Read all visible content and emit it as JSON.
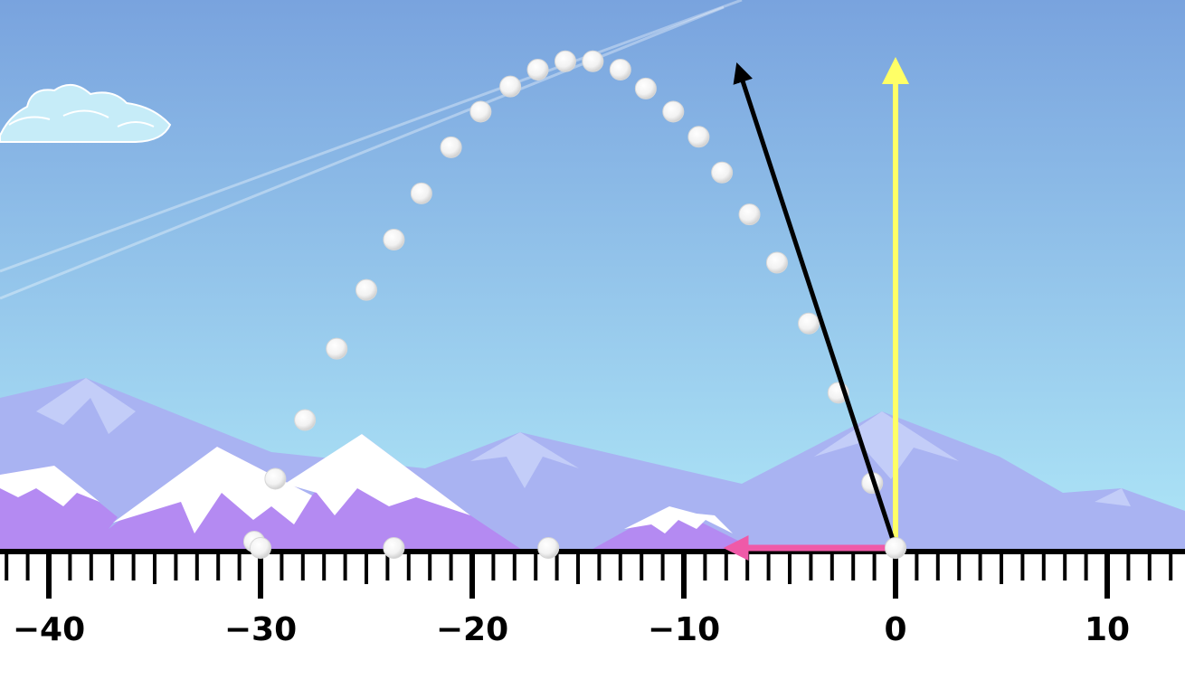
{
  "scene": {
    "type": "projectile-motion-simulation",
    "colors": {
      "sky_top": "#79a3de",
      "sky_bottom": "#aee6f7",
      "far_mountains": "#a9b3f2",
      "near_mountains": "#b48af2",
      "snow": "#ffffff",
      "ground_line": "#000000",
      "velocity_vector": "#000000",
      "vertical_component": "#ffff66",
      "horizontal_component": "#ef5aa8",
      "projectile": "#ffffff"
    }
  },
  "number_line": {
    "min": -44,
    "max": 13,
    "major_step": 10,
    "minor_step": 1,
    "labels": [
      "−40",
      "−30",
      "−20",
      "−10",
      "0",
      "10"
    ]
  },
  "launch": {
    "position_x": 0,
    "velocity_vector": {
      "vx": -7.3,
      "vy": 22.5,
      "icon": "arrow-up-left"
    },
    "vertical_component": {
      "vy": 22.5,
      "icon": "arrow-up"
    },
    "horizontal_component": {
      "vx": -7.3,
      "icon": "arrow-left"
    }
  },
  "trajectory": {
    "landed_x": [
      -30,
      -23.7,
      -16.4
    ],
    "dots": [
      [
        0,
        0
      ],
      [
        -1.1,
        3.1
      ],
      [
        -2.7,
        7.4
      ],
      [
        -4.1,
        10.7
      ],
      [
        -5.6,
        13.6
      ],
      [
        -6.9,
        15.9
      ],
      [
        -8.2,
        17.9
      ],
      [
        -9.3,
        19.6
      ],
      [
        -10.5,
        20.8
      ],
      [
        -11.8,
        21.9
      ],
      [
        -13.0,
        22.8
      ],
      [
        -14.3,
        23.2
      ],
      [
        -15.6,
        23.2
      ],
      [
        -16.9,
        22.8
      ],
      [
        -18.2,
        22.0
      ],
      [
        -19.6,
        20.8
      ],
      [
        -21.0,
        19.1
      ],
      [
        -22.4,
        16.9
      ],
      [
        -23.7,
        14.7
      ],
      [
        -25.0,
        12.3
      ],
      [
        -26.4,
        9.5
      ],
      [
        -27.9,
        6.1
      ],
      [
        -29.3,
        3.3
      ],
      [
        -30.3,
        0.3
      ]
    ]
  }
}
